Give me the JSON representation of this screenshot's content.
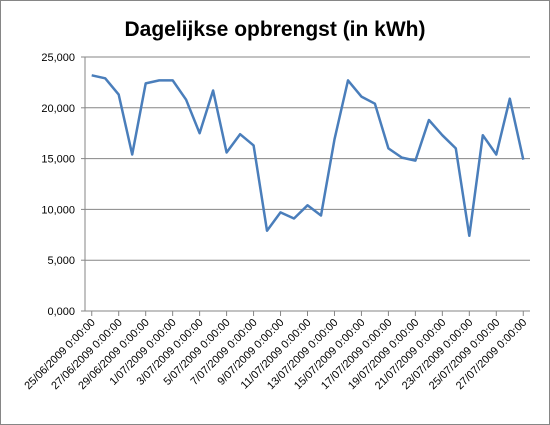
{
  "chart_data": {
    "type": "line",
    "title": "Dagelijkse opbrengst (in kWh)",
    "categories": [
      "25/06/2009 0:00:00",
      null,
      "27/06/2009 0:00:00",
      null,
      "29/06/2009 0:00:00",
      null,
      "1/07/2009 0:00:00",
      null,
      "3/07/2009 0:00:00",
      null,
      "5/07/2009 0:00:00",
      null,
      "7/07/2009 0:00:00",
      null,
      "9/07/2009 0:00:00",
      null,
      "11/07/2009 0:00:00",
      null,
      "13/07/2009 0:00:00",
      null,
      "15/07/2009 0:00:00",
      null,
      "17/07/2009 0:00:00",
      null,
      "19/07/2009 0:00:00",
      null,
      "21/07/2009 0:00:00",
      null,
      "23/07/2009 0:00:00",
      null,
      "25/07/2009 0:00:00",
      null,
      "27/07/2009 0:00:00"
    ],
    "values": [
      23.2,
      22.9,
      21.3,
      15.4,
      22.4,
      22.7,
      22.7,
      20.8,
      17.5,
      21.7,
      15.6,
      17.4,
      16.3,
      7.9,
      9.7,
      9.1,
      10.4,
      9.4,
      16.9,
      22.7,
      21.1,
      20.4,
      16.0,
      15.1,
      14.8,
      18.8,
      17.3,
      16.0,
      7.4,
      17.3,
      15.4,
      20.9,
      14.9
    ],
    "color": "#4a7ebb",
    "ylim": [
      0,
      25
    ],
    "yticks": [
      {
        "value": 0,
        "label": "0,000"
      },
      {
        "value": 5,
        "label": "5,000"
      },
      {
        "value": 10,
        "label": "10,000"
      },
      {
        "value": 15,
        "label": "15,000"
      },
      {
        "value": 20,
        "label": "20,000"
      },
      {
        "value": 25,
        "label": "25,000"
      }
    ],
    "grid": true
  }
}
